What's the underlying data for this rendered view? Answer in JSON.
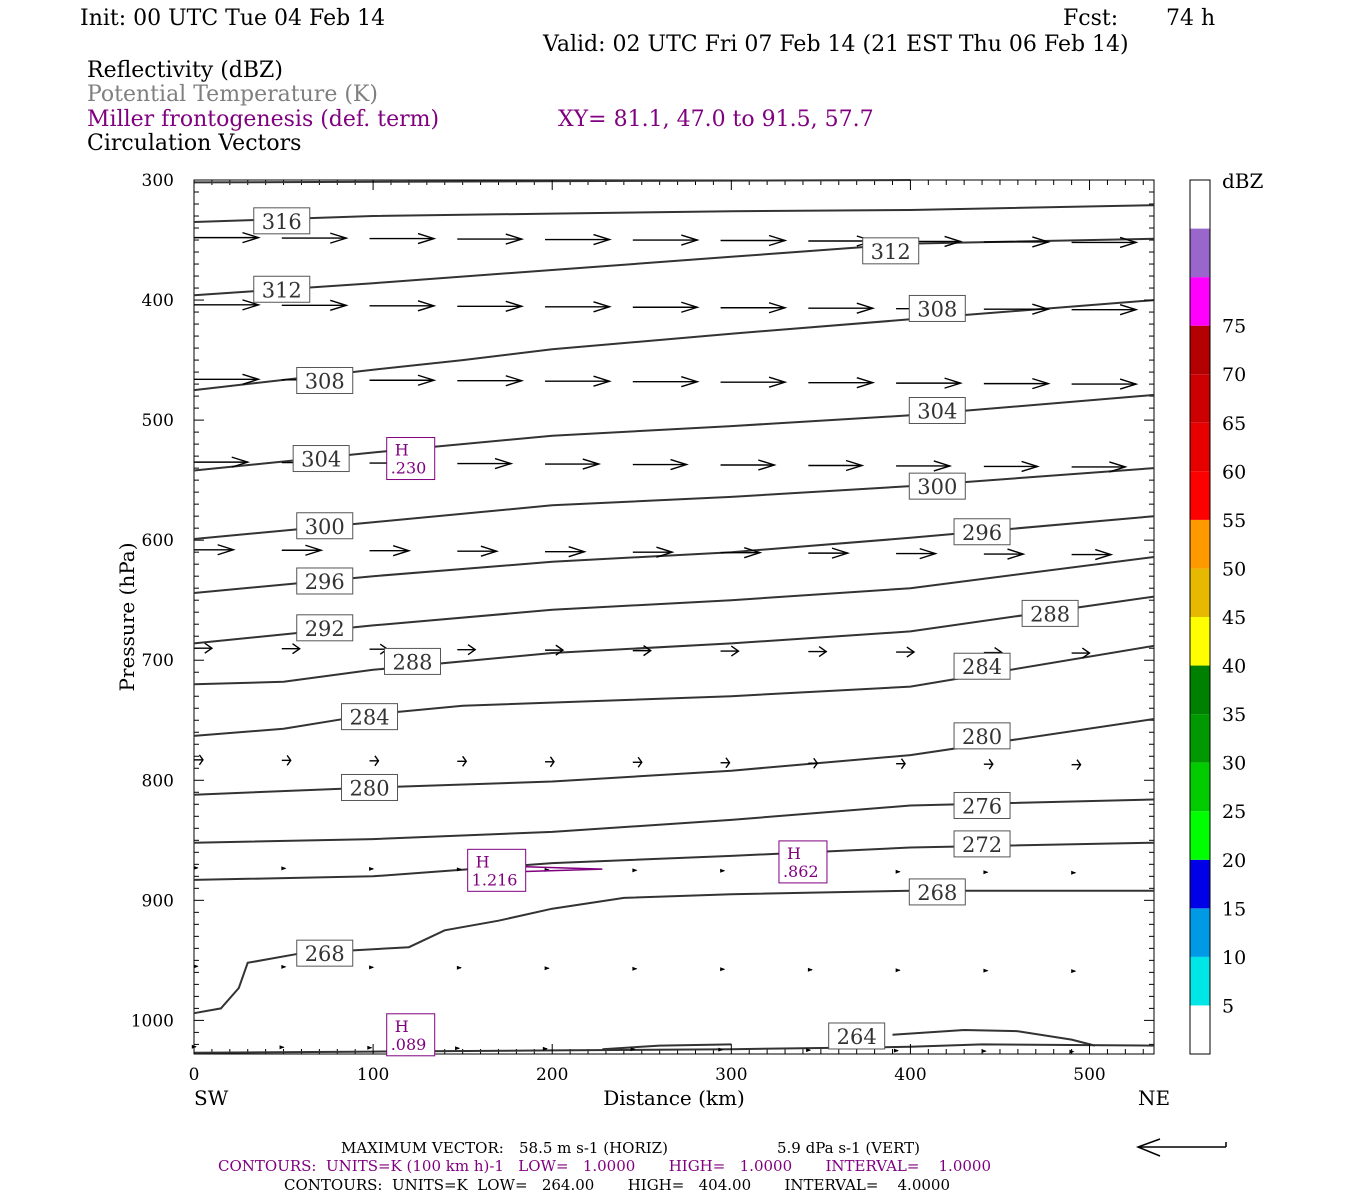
{
  "header": {
    "init": "Init: 00 UTC Tue 04 Feb 14",
    "fcst_label": "Fcst:",
    "fcst_value": "74 h",
    "valid": "Valid: 02 UTC Fri 07 Feb 14 (21 EST Thu 06 Feb 14)"
  },
  "fields": {
    "reflectivity": "Reflectivity (dBZ)",
    "theta": "Potential Temperature (K)",
    "frontogenesis": "Miller frontogenesis (def. term)",
    "xy": "XY=  81.1, 47.0 to  91.5, 57.7",
    "vectors": "Circulation Vectors"
  },
  "colors": {
    "purple": "#800080",
    "gray": "#7f7f7f",
    "black": "#000000"
  },
  "chart_data": {
    "type": "line",
    "xlabel": "Distance (km)",
    "ylabel": "Pressure (hPa)",
    "xlim": [
      0,
      536
    ],
    "ylim": [
      1028,
      300
    ],
    "x_ticks": [
      0,
      100,
      200,
      300,
      400,
      500
    ],
    "y_ticks": [
      300,
      400,
      500,
      600,
      700,
      800,
      900,
      1000
    ],
    "endpoint_labels": {
      "left": "SW",
      "right": "NE"
    },
    "isentropes": [
      {
        "label": "316",
        "points": [
          [
            0,
            335
          ],
          [
            100,
            330
          ],
          [
            200,
            328
          ],
          [
            300,
            326
          ],
          [
            400,
            325
          ],
          [
            536,
            321
          ]
        ],
        "label_pos": [
          49,
          334
        ]
      },
      {
        "label": "312",
        "points": [
          [
            0,
            396
          ],
          [
            100,
            386
          ],
          [
            200,
            375
          ],
          [
            300,
            364
          ],
          [
            400,
            353
          ],
          [
            536,
            349
          ]
        ],
        "label_pos": [
          49,
          391
        ],
        "label2": "312",
        "label2_pos": [
          389,
          359
        ]
      },
      {
        "label": "308",
        "points": [
          [
            0,
            475
          ],
          [
            100,
            458
          ],
          [
            150,
            450
          ],
          [
            200,
            441
          ],
          [
            300,
            428
          ],
          [
            400,
            416
          ],
          [
            536,
            400
          ]
        ],
        "label_pos": [
          73,
          467
        ],
        "label2": "308",
        "label2_pos": [
          415,
          407
        ]
      },
      {
        "label": "304",
        "points": [
          [
            0,
            542
          ],
          [
            100,
            527
          ],
          [
            200,
            513
          ],
          [
            300,
            505
          ],
          [
            400,
            496
          ],
          [
            536,
            479
          ]
        ],
        "label_pos": [
          71,
          532
        ],
        "label2": "304",
        "label2_pos": [
          415,
          492
        ]
      },
      {
        "label": "300",
        "points": [
          [
            0,
            599
          ],
          [
            100,
            585
          ],
          [
            200,
            571
          ],
          [
            300,
            564
          ],
          [
            400,
            555
          ],
          [
            536,
            540
          ]
        ],
        "label_pos": [
          73,
          588
        ],
        "label2": "300",
        "label2_pos": [
          415,
          555
        ]
      },
      {
        "label": "296",
        "points": [
          [
            0,
            644
          ],
          [
            100,
            630
          ],
          [
            200,
            618
          ],
          [
            300,
            610
          ],
          [
            400,
            598
          ],
          [
            536,
            580
          ]
        ],
        "label_pos": [
          73,
          634
        ],
        "label2": "296",
        "label2_pos": [
          440,
          593
        ]
      },
      {
        "label": "292",
        "points": [
          [
            0,
            686
          ],
          [
            100,
            671
          ],
          [
            200,
            658
          ],
          [
            300,
            650
          ],
          [
            400,
            640
          ],
          [
            536,
            614
          ]
        ],
        "label_pos": [
          73,
          673
        ]
      },
      {
        "label": "288",
        "points": [
          [
            0,
            720
          ],
          [
            50,
            718
          ],
          [
            100,
            708
          ],
          [
            200,
            694
          ],
          [
            300,
            686
          ],
          [
            400,
            676
          ],
          [
            536,
            647
          ]
        ],
        "label_pos": [
          122,
          701
        ],
        "label2": "288",
        "label2_pos": [
          478,
          661
        ]
      },
      {
        "label": "284",
        "points": [
          [
            0,
            763
          ],
          [
            50,
            757
          ],
          [
            100,
            745
          ],
          [
            150,
            738
          ],
          [
            300,
            730
          ],
          [
            400,
            722
          ],
          [
            536,
            688
          ]
        ],
        "label_pos": [
          98,
          747
        ],
        "label2": "284",
        "label2_pos": [
          440,
          705
        ]
      },
      {
        "label": "280",
        "points": [
          [
            0,
            812
          ],
          [
            100,
            806
          ],
          [
            200,
            801
          ],
          [
            300,
            792
          ],
          [
            400,
            779
          ],
          [
            536,
            749
          ]
        ],
        "label_pos": [
          98,
          806
        ],
        "label2": "280",
        "label2_pos": [
          440,
          763
        ]
      },
      {
        "label": "276",
        "points": [
          [
            0,
            852
          ],
          [
            100,
            849
          ],
          [
            200,
            843
          ],
          [
            300,
            833
          ],
          [
            400,
            821
          ],
          [
            536,
            816
          ]
        ],
        "label_pos": [
          440,
          821
        ]
      },
      {
        "label": "272",
        "points": [
          [
            0,
            883
          ],
          [
            100,
            880
          ],
          [
            200,
            869
          ],
          [
            300,
            863
          ],
          [
            400,
            856
          ],
          [
            536,
            852
          ]
        ],
        "label_pos": [
          440,
          853
        ]
      },
      {
        "label": "268",
        "points": [
          [
            0,
            994
          ],
          [
            15,
            990
          ],
          [
            25,
            973
          ],
          [
            30,
            952
          ],
          [
            60,
            944
          ],
          [
            120,
            939
          ],
          [
            140,
            925
          ],
          [
            170,
            917
          ],
          [
            200,
            907
          ],
          [
            240,
            898
          ],
          [
            300,
            895
          ],
          [
            400,
            892
          ],
          [
            536,
            892
          ]
        ],
        "label_pos": [
          73,
          944
        ],
        "label2": "268",
        "label2_pos": [
          415,
          893
        ]
      },
      {
        "label": "264",
        "points": [
          [
            0,
            1027
          ],
          [
            100,
            1026
          ],
          [
            200,
            1025
          ],
          [
            300,
            1024
          ],
          [
            400,
            1022
          ],
          [
            440,
            1020
          ],
          [
            536,
            1021
          ]
        ],
        "label_pos": [
          370,
          1013
        ]
      },
      {
        "label": "",
        "points": [
          [
            228,
            1024
          ],
          [
            260,
            1021
          ],
          [
            300,
            1020
          ]
        ],
        "label_pos": null
      },
      {
        "label": "",
        "points": [
          [
            390,
            1012
          ],
          [
            430,
            1008
          ],
          [
            460,
            1009
          ],
          [
            490,
            1016
          ],
          [
            503,
            1021
          ]
        ],
        "label_pos": null
      }
    ],
    "frontogenesis_maxima": [
      {
        "marker": "H",
        "value": ".230",
        "pos": [
          121,
          532
        ]
      },
      {
        "marker": "H",
        "value": "1.216",
        "pos": [
          169,
          875
        ]
      },
      {
        "marker": "H",
        "value": ".862",
        "pos": [
          340,
          868
        ]
      },
      {
        "marker": "H",
        "value": ".089",
        "pos": [
          121,
          1012
        ]
      }
    ],
    "vector_rows": [
      {
        "p": 348,
        "len_km": 36
      },
      {
        "p": 404,
        "len_km": 36
      },
      {
        "p": 466,
        "len_km": 36
      },
      {
        "p": 535,
        "len_km": 30
      },
      {
        "p": 608,
        "len_km": 22
      },
      {
        "p": 690,
        "len_km": 10
      },
      {
        "p": 783,
        "len_km": 5
      },
      {
        "p": 873,
        "len_km": 2
      },
      {
        "p": 955,
        "len_km": 2
      },
      {
        "p": 1022,
        "len_km": 1
      }
    ],
    "colorbar": {
      "unit": "dBZ",
      "levels": [
        "5",
        "10",
        "15",
        "20",
        "25",
        "30",
        "35",
        "40",
        "45",
        "50",
        "55",
        "60",
        "65",
        "70",
        "75"
      ],
      "colors": [
        "#ffffff",
        "#00e5e5",
        "#0099e6",
        "#0000e6",
        "#00ff00",
        "#00cc00",
        "#009900",
        "#008000",
        "#ffff00",
        "#e6b800",
        "#ff9900",
        "#ff0000",
        "#e60000",
        "#cc0000",
        "#b30000",
        "#ff00ff",
        "#9966cc",
        "#ffffff"
      ]
    }
  },
  "footer": {
    "max_vector_label": "MAXIMUM VECTOR:",
    "max_vector_horiz": "58.5 m s-1 (HORIZ)",
    "max_vector_vert": "5.9 dPa s-1 (VERT)",
    "contours_purple": "CONTOURS:  UNITS=K (100 km h)-1   LOW=   1.0000       HIGH=   1.0000       INTERVAL=    1.0000",
    "contours_black": "CONTOURS:  UNITS=K  LOW=   264.00       HIGH=   404.00       INTERVAL=    4.0000"
  }
}
